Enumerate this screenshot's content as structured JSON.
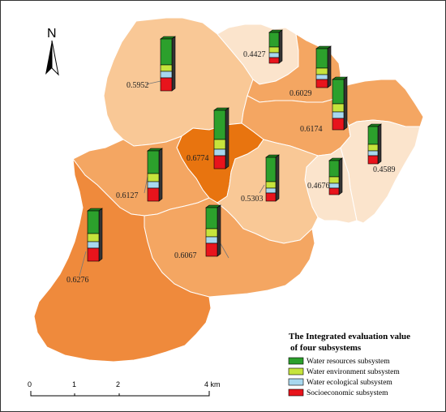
{
  "north_label": "N",
  "colors": {
    "water_resources": "#2ca02c",
    "water_environment": "#c6e43c",
    "water_ecological": "#a8d8ef",
    "socioeconomic": "#e8141c",
    "level_light": "#fbe4cc",
    "level_mid_light": "#f9c896",
    "level_mid": "#f4a662",
    "level_dark": "#ef8a3c",
    "level_darkest": "#e8740f"
  },
  "legend": {
    "title_line1": "The Integrated  evaluation value",
    "title_line2": "of four subsystems",
    "items": [
      {
        "label": "Water resources subsystem",
        "color": "#2ca02c"
      },
      {
        "label": "Water environment subsystem",
        "color": "#c6e43c"
      },
      {
        "label": "Water ecological subsystem",
        "color": "#a8d8ef"
      },
      {
        "label": "Socioeconomic subsystem",
        "color": "#e8141c"
      }
    ]
  },
  "scale_bar": {
    "ticks": [
      "0",
      "1",
      "2",
      "4 km"
    ]
  },
  "districts": [
    {
      "id": "nw",
      "value": "0.5952"
    },
    {
      "id": "n",
      "value": "0.4427"
    },
    {
      "id": "ne-upper",
      "value": "0.6029"
    },
    {
      "id": "e-mid",
      "value": "0.6174"
    },
    {
      "id": "center",
      "value": "0.6774"
    },
    {
      "id": "w",
      "value": "0.6127"
    },
    {
      "id": "center-south",
      "value": "0.5303"
    },
    {
      "id": "se",
      "value": "0.4676"
    },
    {
      "id": "far-east",
      "value": "0.4589"
    },
    {
      "id": "sw",
      "value": "0.6276"
    },
    {
      "id": "south",
      "value": "0.6067"
    }
  ]
}
